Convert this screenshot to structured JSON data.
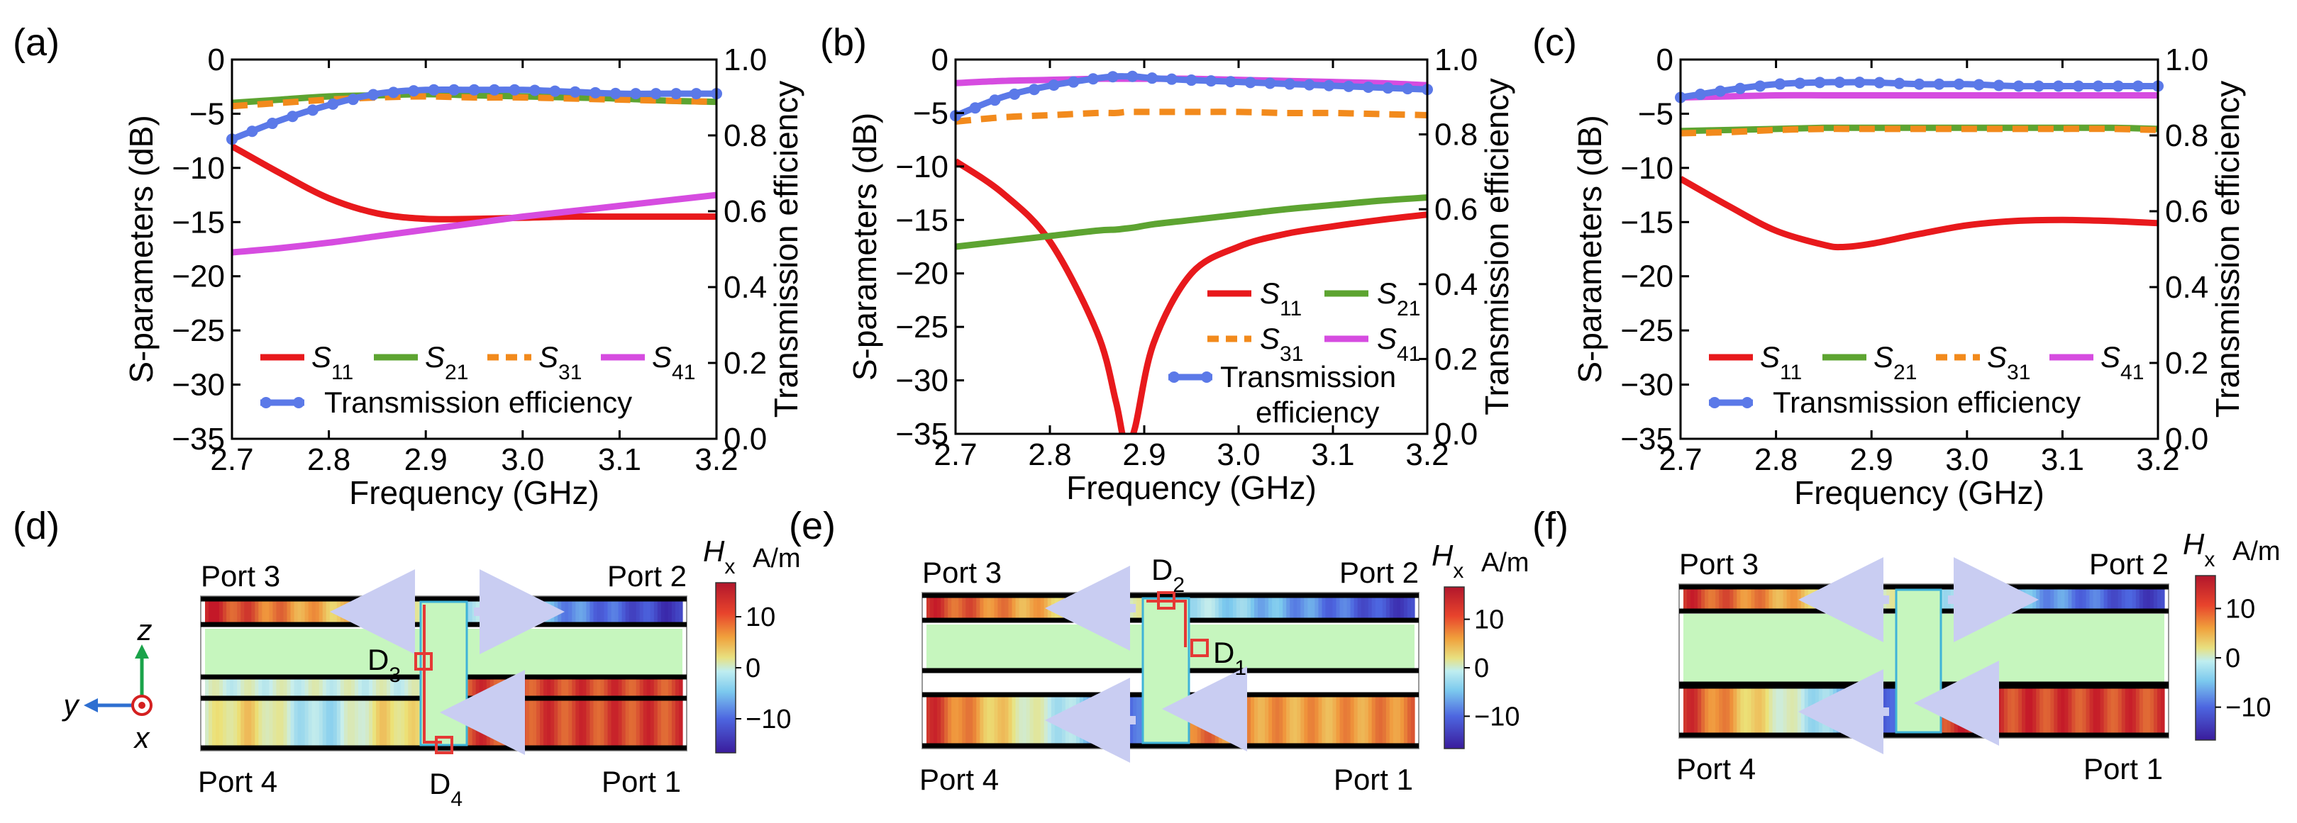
{
  "colors": {
    "s11": "#e8191c",
    "s21": "#5da431",
    "s31": "#f28a1c",
    "s41": "#d64ce0",
    "te": "#5b79e8",
    "field_green": "#c6f6be",
    "marker_red": "#e53935",
    "axis_y": "#1aa34a",
    "axis_z_x": "#d42020",
    "axis_blue": "#2e6fd1",
    "arrow": "#c9cdf2"
  },
  "chart_data": [
    {
      "panel": "(a)",
      "type": "line",
      "xlabel": "Frequency (GHz)",
      "ylabel": "S-parameters (dB)",
      "y2label": "Transmission efficiency",
      "xlim": [
        2.7,
        3.2
      ],
      "ylim": [
        -35,
        0
      ],
      "y2lim": [
        0.0,
        1.0
      ],
      "xticks": [
        "2.7",
        "2.8",
        "2.9",
        "3.0",
        "3.1",
        "3.2"
      ],
      "yticks": [
        "0",
        "-5",
        "-10",
        "-15",
        "-20",
        "-25",
        "-30",
        "-35"
      ],
      "y2ticks": [
        "1.0",
        "0.8",
        "0.6",
        "0.4",
        "0.2",
        "0.0"
      ],
      "x": [
        2.7,
        2.75,
        2.8,
        2.85,
        2.9,
        2.95,
        3.0,
        3.05,
        3.1,
        3.15,
        3.2
      ],
      "series": [
        {
          "name": "S11",
          "key": "s11",
          "axis": "left",
          "dash": "none",
          "values": [
            -8.0,
            -10.5,
            -12.8,
            -14.2,
            -14.7,
            -14.7,
            -14.6,
            -14.5,
            -14.5,
            -14.5,
            -14.5
          ]
        },
        {
          "name": "S21",
          "key": "s21",
          "axis": "left",
          "dash": "none",
          "values": [
            -4.0,
            -3.7,
            -3.4,
            -3.3,
            -3.2,
            -3.3,
            -3.4,
            -3.5,
            -3.6,
            -3.8,
            -3.9
          ]
        },
        {
          "name": "S31",
          "key": "s31",
          "axis": "left",
          "dash": "dash",
          "values": [
            -4.3,
            -4.0,
            -3.7,
            -3.5,
            -3.4,
            -3.5,
            -3.5,
            -3.6,
            -3.7,
            -3.8,
            -3.9
          ]
        },
        {
          "name": "S41",
          "key": "s41",
          "axis": "left",
          "dash": "none",
          "values": [
            -17.8,
            -17.4,
            -16.9,
            -16.3,
            -15.7,
            -15.1,
            -14.5,
            -14.0,
            -13.5,
            -13.0,
            -12.5
          ]
        },
        {
          "name": "Transmission efficiency",
          "key": "te",
          "axis": "right",
          "markers": true,
          "values": [
            0.79,
            0.84,
            0.88,
            0.91,
            0.92,
            0.92,
            0.92,
            0.915,
            0.91,
            0.91,
            0.91
          ]
        }
      ],
      "legend": [
        {
          "key": "s11",
          "sym": "S",
          "sub": "11"
        },
        {
          "key": "s21",
          "sym": "S",
          "sub": "21"
        },
        {
          "key": "s31",
          "sym": "S",
          "sub": "31"
        },
        {
          "key": "s41",
          "sym": "S",
          "sub": "41"
        },
        {
          "key": "te",
          "text": "Transmission efficiency"
        }
      ]
    },
    {
      "panel": "(b)",
      "type": "line",
      "xlabel": "Frequency (GHz)",
      "ylabel": "S-parameters (dB)",
      "y2label": "Transmission efficiency",
      "xlim": [
        2.7,
        3.2
      ],
      "ylim": [
        -35,
        0
      ],
      "y2lim": [
        0.0,
        1.0
      ],
      "xticks": [
        "2.7",
        "2.8",
        "2.9",
        "3.0",
        "3.1",
        "3.2"
      ],
      "yticks": [
        "0",
        "-5",
        "-10",
        "-15",
        "-20",
        "-25",
        "-30",
        "-35"
      ],
      "y2ticks": [
        "1.0",
        "0.8",
        "0.6",
        "0.4",
        "0.2",
        "0.0"
      ],
      "x": [
        2.7,
        2.75,
        2.8,
        2.85,
        2.87,
        2.88,
        2.89,
        2.91,
        2.95,
        3.0,
        3.05,
        3.1,
        3.15,
        3.2
      ],
      "series": [
        {
          "name": "S11",
          "key": "s11",
          "axis": "left",
          "dash": "none",
          "values": [
            -9.5,
            -12.5,
            -17.0,
            -25.5,
            -32.0,
            -36.0,
            -34.5,
            -26.5,
            -20.0,
            -17.5,
            -16.3,
            -15.6,
            -15.0,
            -14.5
          ]
        },
        {
          "name": "S21",
          "key": "s21",
          "axis": "left",
          "dash": "none",
          "values": [
            -17.5,
            -17.0,
            -16.5,
            -16.0,
            -15.9,
            -15.8,
            -15.7,
            -15.4,
            -15.0,
            -14.5,
            -14.0,
            -13.6,
            -13.2,
            -12.9
          ]
        },
        {
          "name": "S31",
          "key": "s31",
          "axis": "left",
          "dash": "dash",
          "values": [
            -5.8,
            -5.4,
            -5.2,
            -5.0,
            -5.0,
            -4.9,
            -4.9,
            -4.9,
            -4.9,
            -4.9,
            -5.0,
            -5.0,
            -5.1,
            -5.2
          ]
        },
        {
          "name": "S41",
          "key": "s41",
          "axis": "left",
          "dash": "none",
          "values": [
            -2.2,
            -2.0,
            -1.9,
            -1.8,
            -1.8,
            -1.8,
            -1.8,
            -1.8,
            -1.8,
            -1.9,
            -2.0,
            -2.1,
            -2.2,
            -2.4
          ]
        },
        {
          "name": "Transmission efficiency",
          "key": "te",
          "axis": "right",
          "markers": true,
          "values": [
            0.85,
            0.9,
            0.93,
            0.95,
            0.955,
            0.955,
            0.955,
            0.95,
            0.945,
            0.94,
            0.935,
            0.93,
            0.925,
            0.92
          ]
        }
      ],
      "legend": [
        {
          "key": "s11",
          "sym": "S",
          "sub": "11"
        },
        {
          "key": "s21",
          "sym": "S",
          "sub": "21"
        },
        {
          "key": "s31",
          "sym": "S",
          "sub": "31"
        },
        {
          "key": "s41",
          "sym": "S",
          "sub": "41"
        },
        {
          "key": "te",
          "text": "Transmission",
          "text2": "efficiency"
        }
      ]
    },
    {
      "panel": "(c)",
      "type": "line",
      "xlabel": "Frequency (GHz)",
      "ylabel": "S-parameters (dB)",
      "y2label": "Transmission efficiency",
      "xlim": [
        2.7,
        3.2
      ],
      "ylim": [
        -35,
        0
      ],
      "y2lim": [
        0.0,
        1.0
      ],
      "xticks": [
        "2.7",
        "2.8",
        "2.9",
        "3.0",
        "3.1",
        "3.2"
      ],
      "yticks": [
        "0",
        "-5",
        "-10",
        "-15",
        "-20",
        "-25",
        "-30",
        "-35"
      ],
      "y2ticks": [
        "1.0",
        "0.8",
        "0.6",
        "0.4",
        "0.2",
        "0.0"
      ],
      "x": [
        2.7,
        2.75,
        2.8,
        2.85,
        2.87,
        2.9,
        2.95,
        3.0,
        3.05,
        3.1,
        3.15,
        3.2
      ],
      "series": [
        {
          "name": "S11",
          "key": "s11",
          "axis": "left",
          "dash": "none",
          "values": [
            -11.0,
            -13.5,
            -15.8,
            -17.1,
            -17.3,
            -17.0,
            -16.1,
            -15.3,
            -14.9,
            -14.8,
            -14.9,
            -15.1
          ]
        },
        {
          "name": "S21",
          "key": "s21",
          "axis": "left",
          "dash": "none",
          "values": [
            -6.6,
            -6.5,
            -6.4,
            -6.3,
            -6.3,
            -6.3,
            -6.3,
            -6.3,
            -6.3,
            -6.3,
            -6.3,
            -6.4
          ]
        },
        {
          "name": "S31",
          "key": "s31",
          "axis": "left",
          "dash": "dash",
          "values": [
            -6.8,
            -6.7,
            -6.5,
            -6.4,
            -6.4,
            -6.4,
            -6.4,
            -6.4,
            -6.4,
            -6.4,
            -6.4,
            -6.5
          ]
        },
        {
          "name": "S41",
          "key": "s41",
          "axis": "left",
          "dash": "none",
          "values": [
            -3.5,
            -3.4,
            -3.3,
            -3.3,
            -3.3,
            -3.3,
            -3.3,
            -3.3,
            -3.3,
            -3.3,
            -3.3,
            -3.3
          ]
        },
        {
          "name": "Transmission efficiency",
          "key": "te",
          "axis": "right",
          "markers": true,
          "values": [
            0.9,
            0.92,
            0.935,
            0.94,
            0.94,
            0.94,
            0.935,
            0.935,
            0.93,
            0.93,
            0.93,
            0.93
          ]
        }
      ],
      "legend": [
        {
          "key": "s11",
          "sym": "S",
          "sub": "11"
        },
        {
          "key": "s21",
          "sym": "S",
          "sub": "21"
        },
        {
          "key": "s31",
          "sym": "S",
          "sub": "31"
        },
        {
          "key": "s41",
          "sym": "S",
          "sub": "41"
        },
        {
          "key": "te",
          "text": "Transmission efficiency"
        }
      ]
    }
  ],
  "field_maps": [
    {
      "panel": "(d)",
      "ports": {
        "p3": "Port 3",
        "p2": "Port 2",
        "p4": "Port 4",
        "p1": "Port 1"
      },
      "detectors": [
        {
          "name": "D",
          "sub": "3"
        },
        {
          "name": "D",
          "sub": "4"
        }
      ],
      "colorbar": {
        "label": "H",
        "label_sub": "x",
        "unit": "A/m",
        "ticks": [
          "10",
          "0",
          "−10"
        ]
      }
    },
    {
      "panel": "(e)",
      "ports": {
        "p3": "Port 3",
        "p2": "Port 2",
        "p4": "Port 4",
        "p1": "Port 1"
      },
      "detectors": [
        {
          "name": "D",
          "sub": "2"
        },
        {
          "name": "D",
          "sub": "1"
        }
      ],
      "colorbar": {
        "label": "H",
        "label_sub": "x",
        "unit": "A/m",
        "ticks": [
          "10",
          "0",
          "−10"
        ]
      }
    },
    {
      "panel": "(f)",
      "ports": {
        "p3": "Port 3",
        "p2": "Port 2",
        "p4": "Port 4",
        "p1": "Port 1"
      },
      "detectors": [],
      "colorbar": {
        "label": "H",
        "label_sub": "x",
        "unit": "A/m",
        "ticks": [
          "10",
          "0",
          "−10"
        ]
      }
    }
  ],
  "axes_triad": {
    "z": "z",
    "y": "y",
    "x": "x"
  }
}
